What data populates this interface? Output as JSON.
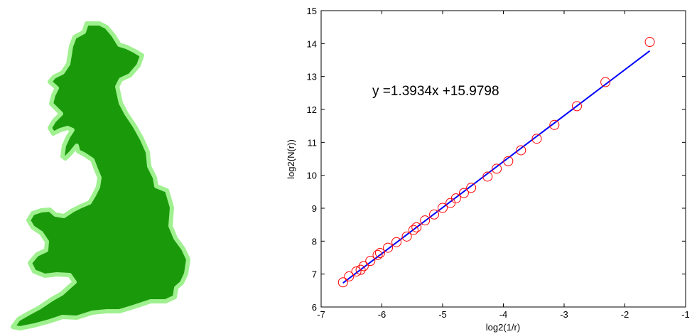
{
  "map_figure": {
    "fill_color": "#1a9a0a",
    "outline_color": "#9ff08f"
  },
  "chart_data": {
    "type": "scatter",
    "xlabel": "log2(1/r)",
    "ylabel": "log2(N(r))",
    "xlim": [
      -7,
      -1
    ],
    "ylim": [
      6,
      15
    ],
    "xticks": [
      "-7",
      "-6",
      "-5",
      "-4",
      "-3",
      "-2",
      "-1"
    ],
    "yticks": [
      "6",
      "7",
      "8",
      "9",
      "10",
      "11",
      "12",
      "13",
      "14",
      "15"
    ],
    "grid": false,
    "annotation": "y =1.3934x +15.9798",
    "marker_color": "#ff0000",
    "line_color": "#0000ff",
    "series": [
      {
        "type": "scatter",
        "marker": "circle",
        "points": [
          [
            -6.64,
            6.75
          ],
          [
            -6.54,
            6.93
          ],
          [
            -6.42,
            7.08
          ],
          [
            -6.35,
            7.13
          ],
          [
            -6.3,
            7.24
          ],
          [
            -6.19,
            7.4
          ],
          [
            -6.07,
            7.58
          ],
          [
            -6.03,
            7.64
          ],
          [
            -5.9,
            7.8
          ],
          [
            -5.76,
            7.97
          ],
          [
            -5.59,
            8.14
          ],
          [
            -5.48,
            8.34
          ],
          [
            -5.43,
            8.42
          ],
          [
            -5.29,
            8.63
          ],
          [
            -5.14,
            8.81
          ],
          [
            -5.0,
            9.01
          ],
          [
            -4.87,
            9.16
          ],
          [
            -4.78,
            9.3
          ],
          [
            -4.65,
            9.46
          ],
          [
            -4.53,
            9.62
          ],
          [
            -4.26,
            9.96
          ],
          [
            -4.11,
            10.2
          ],
          [
            -3.92,
            10.43
          ],
          [
            -3.71,
            10.76
          ],
          [
            -3.45,
            11.11
          ],
          [
            -3.16,
            11.53
          ],
          [
            -2.79,
            12.1
          ],
          [
            -2.32,
            12.83
          ],
          [
            -1.59,
            14.05
          ]
        ]
      },
      {
        "type": "line",
        "points": [
          [
            -6.64,
            6.73
          ],
          [
            -1.59,
            13.78
          ]
        ]
      }
    ]
  }
}
